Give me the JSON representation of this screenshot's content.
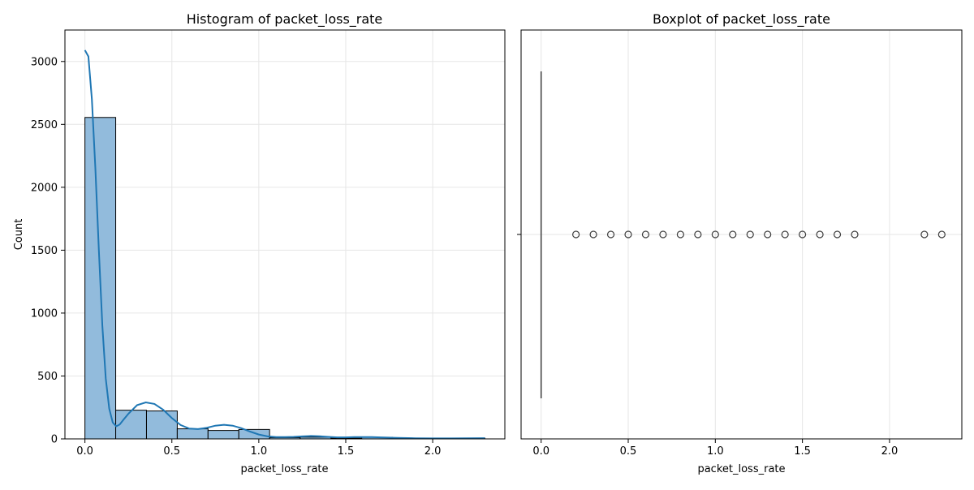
{
  "chart_data": [
    {
      "type": "bar",
      "title": "Histogram of packet_loss_rate",
      "xlabel": "packet_loss_rate",
      "ylabel": "Count",
      "xlim": [
        -0.115,
        2.415
      ],
      "ylim": [
        0,
        3250
      ],
      "xticks": [
        0.0,
        0.5,
        1.0,
        1.5,
        2.0
      ],
      "xtick_labels": [
        "0.0",
        "0.5",
        "1.0",
        "1.5",
        "2.0"
      ],
      "yticks": [
        0,
        500,
        1000,
        1500,
        2000,
        2500,
        3000
      ],
      "ytick_labels": [
        "0",
        "500",
        "1000",
        "1500",
        "2000",
        "2500",
        "3000"
      ],
      "grid": true,
      "bar_color": "#92bbdc",
      "edge_color": "#000000",
      "bins": [
        {
          "x0": 0.0,
          "x1": 0.177,
          "count": 2555
        },
        {
          "x0": 0.177,
          "x1": 0.354,
          "count": 228
        },
        {
          "x0": 0.354,
          "x1": 0.531,
          "count": 222
        },
        {
          "x0": 0.531,
          "x1": 0.708,
          "count": 80
        },
        {
          "x0": 0.708,
          "x1": 0.885,
          "count": 67
        },
        {
          "x0": 0.885,
          "x1": 1.062,
          "count": 75
        },
        {
          "x0": 1.062,
          "x1": 1.238,
          "count": 10
        },
        {
          "x0": 1.238,
          "x1": 1.415,
          "count": 14
        },
        {
          "x0": 1.415,
          "x1": 1.592,
          "count": 6
        },
        {
          "x0": 1.592,
          "x1": 1.769,
          "count": 13
        },
        {
          "x0": 1.769,
          "x1": 1.946,
          "count": 1
        },
        {
          "x0": 1.946,
          "x1": 2.123,
          "count": 1
        },
        {
          "x0": 2.123,
          "x1": 2.3,
          "count": 6
        }
      ],
      "kde": {
        "color": "#1f77b4",
        "x": [
          0.0,
          0.02,
          0.04,
          0.06,
          0.08,
          0.1,
          0.12,
          0.14,
          0.16,
          0.18,
          0.2,
          0.22,
          0.25,
          0.3,
          0.35,
          0.4,
          0.45,
          0.5,
          0.55,
          0.6,
          0.65,
          0.7,
          0.75,
          0.8,
          0.85,
          0.9,
          0.95,
          1.0,
          1.05,
          1.1,
          1.15,
          1.2,
          1.25,
          1.3,
          1.35,
          1.4,
          1.45,
          1.5,
          1.55,
          1.6,
          1.65,
          1.7,
          1.8,
          1.9,
          2.0,
          2.1,
          2.2,
          2.3
        ],
        "y": [
          3090,
          3040,
          2700,
          2150,
          1500,
          900,
          480,
          240,
          130,
          100,
          115,
          150,
          200,
          268,
          290,
          278,
          232,
          165,
          110,
          82,
          78,
          88,
          105,
          112,
          105,
          85,
          58,
          35,
          20,
          14,
          14,
          16,
          20,
          23,
          21,
          16,
          12,
          12,
          14,
          15,
          14,
          12,
          8,
          5,
          4,
          4,
          5,
          6
        ]
      }
    },
    {
      "type": "boxplot",
      "title": "Boxplot of packet_loss_rate",
      "xlabel": "packet_loss_rate",
      "xlim": [
        -0.115,
        2.415
      ],
      "xticks": [
        0.0,
        0.5,
        1.0,
        1.5,
        2.0
      ],
      "xtick_labels": [
        "0.0",
        "0.5",
        "1.0",
        "1.5",
        "2.0"
      ],
      "grid": true,
      "box": {
        "min": 0.0,
        "q1": 0.0,
        "median": 0.0,
        "q3": 0.0,
        "max": 0.0
      },
      "outliers": [
        0.2,
        0.3,
        0.4,
        0.5,
        0.6,
        0.7,
        0.8,
        0.9,
        1.0,
        1.1,
        1.2,
        1.3,
        1.4,
        1.5,
        1.6,
        1.7,
        1.8,
        2.2,
        2.3
      ],
      "marker_color": "#3d3d3d"
    }
  ]
}
